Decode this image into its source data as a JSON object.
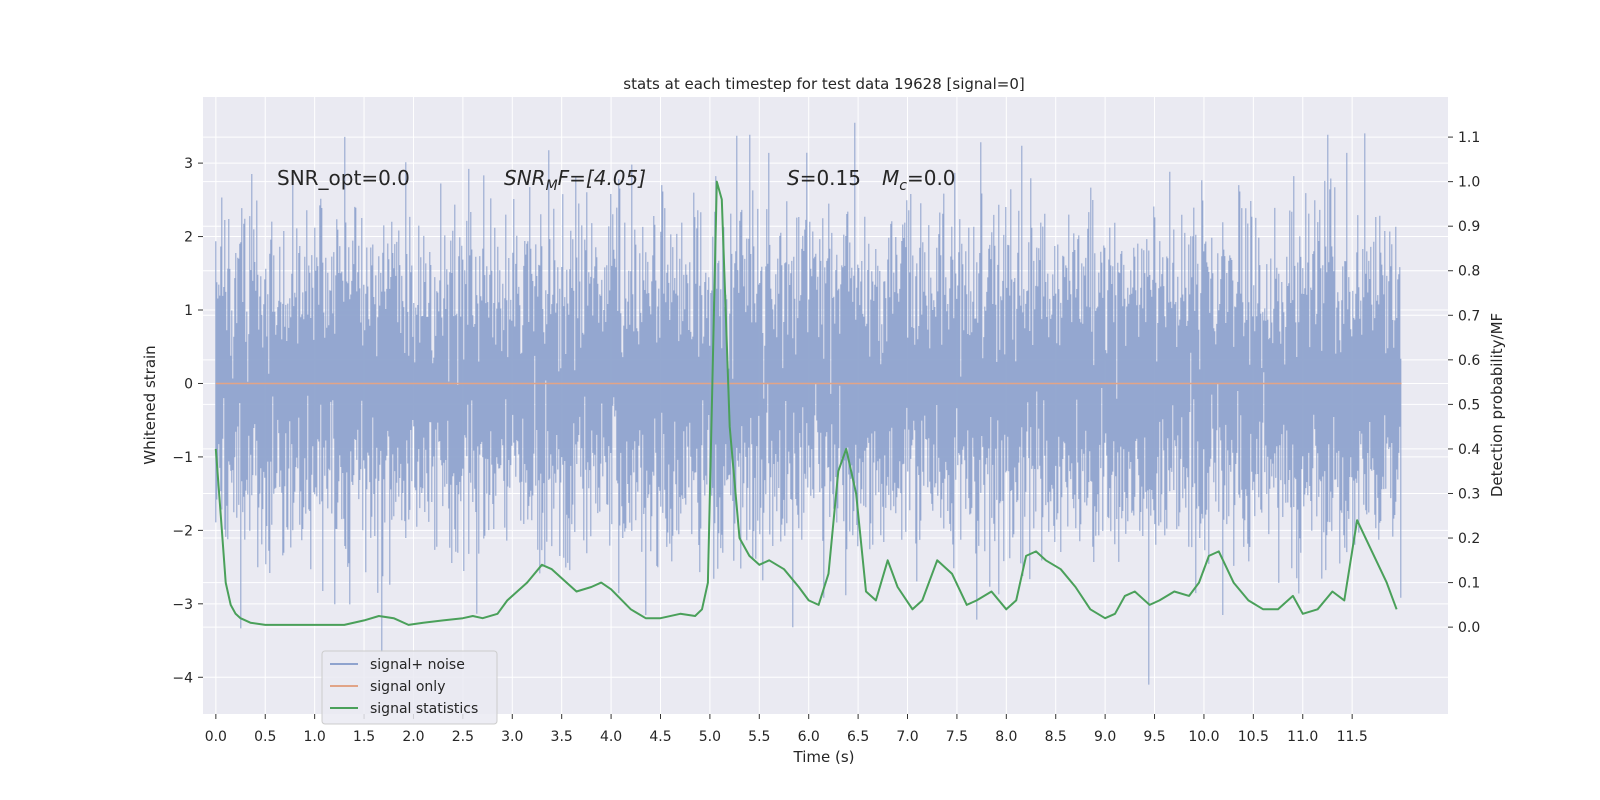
{
  "chart_data": {
    "type": "line",
    "title": "stats at each timestep for test data 19628 [signal=0]",
    "xlabel": "Time (s)",
    "ylabel_left": "Whitened strain",
    "ylabel_right": "Detection probability/MF",
    "xlim": [
      -0.13,
      12.47
    ],
    "ylim_left": [
      -4.5,
      3.9
    ],
    "ylim_right": [
      -0.195,
      1.19
    ],
    "x_ticks": [
      "0.0",
      "0.5",
      "1.0",
      "1.5",
      "2.0",
      "2.5",
      "3.0",
      "3.5",
      "4.0",
      "4.5",
      "5.0",
      "5.5",
      "6.0",
      "6.5",
      "7.0",
      "7.5",
      "8.0",
      "8.5",
      "9.0",
      "9.5",
      "10.0",
      "10.5",
      "11.0",
      "11.5"
    ],
    "y_ticks_left": [
      "−4",
      "−3",
      "−2",
      "−1",
      "0",
      "1",
      "2",
      "3"
    ],
    "y_ticks_right": [
      "0.0",
      "0.1",
      "0.2",
      "0.3",
      "0.4",
      "0.5",
      "0.6",
      "0.7",
      "0.8",
      "0.9",
      "1.0",
      "1.1"
    ],
    "grid": true,
    "legend_placement": "lower-left",
    "annotations": {
      "snr_opt": "SNR_opt=0.0",
      "snr_mf_main": "SNR",
      "snr_mf_sub": "M",
      "snr_mf_rest": "F=[4.05]",
      "s_sym": "S",
      "s_val": "=0.15",
      "mc_sym": "M",
      "mc_sub": "c",
      "mc_val": "=0.0"
    },
    "series": [
      {
        "name": "signal+ noise",
        "axis": "left",
        "color": "#8fa3ce",
        "style": "dense noise, approx N(0,1) sampled at 4096 Hz over 0–12 s, peaks to about ±3.5"
      },
      {
        "name": "signal only",
        "axis": "left",
        "color": "#e1a487",
        "x": [
          0,
          12
        ],
        "y": [
          0,
          0
        ]
      },
      {
        "name": "signal statistics",
        "axis": "right",
        "color": "#4aa05a",
        "x": [
          0.0,
          0.05,
          0.1,
          0.15,
          0.2,
          0.25,
          0.35,
          0.5,
          0.7,
          1.0,
          1.3,
          1.5,
          1.65,
          1.8,
          1.95,
          2.1,
          2.3,
          2.5,
          2.6,
          2.7,
          2.85,
          2.95,
          3.05,
          3.15,
          3.3,
          3.4,
          3.55,
          3.65,
          3.8,
          3.9,
          4.0,
          4.2,
          4.35,
          4.5,
          4.7,
          4.85,
          4.92,
          4.98,
          5.02,
          5.07,
          5.12,
          5.2,
          5.3,
          5.4,
          5.5,
          5.6,
          5.75,
          5.9,
          6.0,
          6.1,
          6.2,
          6.3,
          6.38,
          6.48,
          6.58,
          6.68,
          6.8,
          6.9,
          7.05,
          7.15,
          7.3,
          7.45,
          7.6,
          7.7,
          7.85,
          8.0,
          8.1,
          8.2,
          8.3,
          8.4,
          8.55,
          8.7,
          8.85,
          9.0,
          9.1,
          9.2,
          9.3,
          9.45,
          9.55,
          9.7,
          9.85,
          9.95,
          10.05,
          10.15,
          10.3,
          10.45,
          10.6,
          10.75,
          10.9,
          11.0,
          11.15,
          11.3,
          11.42,
          11.55,
          11.7,
          11.85,
          11.95
        ],
        "y": [
          0.4,
          0.25,
          0.1,
          0.05,
          0.03,
          0.02,
          0.01,
          0.005,
          0.005,
          0.005,
          0.005,
          0.015,
          0.025,
          0.02,
          0.005,
          0.01,
          0.015,
          0.02,
          0.025,
          0.02,
          0.03,
          0.06,
          0.08,
          0.1,
          0.14,
          0.13,
          0.1,
          0.08,
          0.09,
          0.1,
          0.085,
          0.04,
          0.02,
          0.02,
          0.03,
          0.025,
          0.04,
          0.1,
          0.5,
          1.0,
          0.96,
          0.45,
          0.2,
          0.16,
          0.14,
          0.15,
          0.13,
          0.09,
          0.06,
          0.05,
          0.12,
          0.35,
          0.4,
          0.3,
          0.08,
          0.06,
          0.15,
          0.09,
          0.04,
          0.06,
          0.15,
          0.12,
          0.05,
          0.06,
          0.08,
          0.04,
          0.06,
          0.16,
          0.17,
          0.15,
          0.13,
          0.09,
          0.04,
          0.02,
          0.03,
          0.07,
          0.08,
          0.05,
          0.06,
          0.08,
          0.07,
          0.1,
          0.16,
          0.17,
          0.1,
          0.06,
          0.04,
          0.04,
          0.07,
          0.03,
          0.04,
          0.08,
          0.06,
          0.24,
          0.17,
          0.1,
          0.04
        ]
      }
    ]
  }
}
